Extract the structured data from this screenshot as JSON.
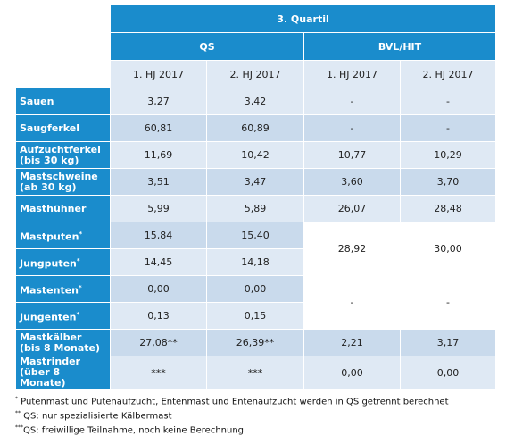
{
  "table": {
    "title": "3. Quartil",
    "groups": [
      "QS",
      "BVL/HIT"
    ],
    "subheaders": [
      "1. HJ 2017",
      "2. HJ 2017",
      "1. HJ 2017",
      "2. HJ 2017"
    ],
    "rows": [
      {
        "label": "Sauen",
        "qs": [
          "3,27",
          "3,42"
        ],
        "bvl": [
          "-",
          "-"
        ]
      },
      {
        "label": "Saugferkel",
        "qs": [
          "60,81",
          "60,89"
        ],
        "bvl": [
          "-",
          "-"
        ]
      },
      {
        "label": "Aufzuchtferkel\n(bis 30 kg)",
        "qs": [
          "11,69",
          "10,42"
        ],
        "bvl": [
          "10,77",
          "10,29"
        ]
      },
      {
        "label": "Mastschweine\n(ab 30 kg)",
        "qs": [
          "3,51",
          "3,47"
        ],
        "bvl": [
          "3,60",
          "3,70"
        ]
      },
      {
        "label": "Masthühner",
        "qs": [
          "5,99",
          "5,89"
        ],
        "bvl": [
          "26,07",
          "28,48"
        ]
      },
      {
        "label": "Mastputen",
        "sup": "*",
        "qs": [
          "15,84",
          "15,40"
        ],
        "bvl": [
          "28,92",
          "30,00"
        ]
      },
      {
        "label": "Jungputen",
        "sup": "*",
        "qs": [
          "14,45",
          "14,18"
        ]
      },
      {
        "label": "Mastenten",
        "sup": "*",
        "qs": [
          "0,00",
          "0,00"
        ],
        "bvl": [
          "-",
          "-"
        ]
      },
      {
        "label": "Jungenten",
        "sup": "*",
        "qs": [
          "0,13",
          "0,15"
        ]
      },
      {
        "label": "Mastkälber\n(bis 8 Monate)",
        "qs": [
          "27,08**",
          "26,39**"
        ],
        "bvl": [
          "2,21",
          "3,17"
        ]
      },
      {
        "label": "Mastrinder\n(über 8\nMonate)",
        "qs": [
          "***",
          "***"
        ],
        "bvl": [
          "0,00",
          "0,00"
        ]
      }
    ]
  },
  "footnotes": [
    {
      "mark": "*",
      "text": " Putenmast und Putenaufzucht, Entenmast und Entenaufzucht werden in QS getrennt berechnet"
    },
    {
      "mark": "**",
      "text": " QS: nur spezialisierte Kälbermast"
    },
    {
      "mark": "***",
      "text": "QS: freiwillige Teilnahme, noch keine Berechnung"
    }
  ]
}
